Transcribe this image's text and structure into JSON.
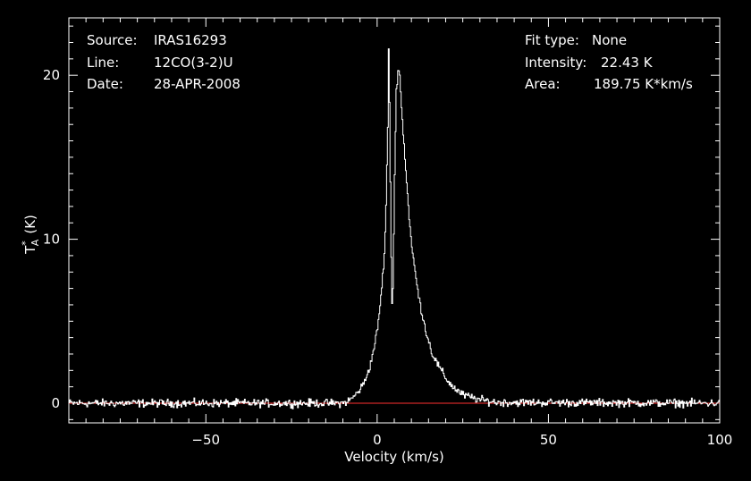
{
  "header_left": {
    "source_label": "Source:",
    "source_value": "IRAS16293",
    "line_label": "Line:",
    "line_value": "12CO(3-2)U",
    "date_label": "Date:",
    "date_value": "28-APR-2008"
  },
  "header_right": {
    "fit_label": "Fit type:",
    "fit_value": "None",
    "intensity_label": "Intensity:",
    "intensity_value": "22.43 K",
    "area_label": "Area:",
    "area_value": "189.75 K*km/s"
  },
  "colors": {
    "background": "#000000",
    "axis": "#ffffff",
    "spectrum": "#ffffff",
    "baseline": "#ff3030"
  },
  "chart_data": {
    "type": "line",
    "xlabel": "Velocity (km/s)",
    "ylabel_main": "T",
    "ylabel_sup": "*",
    "ylabel_sub": "A",
    "ylabel_unit": "(K)",
    "xlim": [
      -90,
      100
    ],
    "ylim": [
      -1.2,
      23.5
    ],
    "xticks": [
      -50,
      0,
      50,
      100
    ],
    "yticks": [
      0,
      10,
      20
    ],
    "xtick_labels": [
      "−50",
      "0",
      "50",
      "100"
    ],
    "ytick_labels": [
      "0",
      "10",
      "20"
    ],
    "baseline_y": 0,
    "noise_rms": 0.15,
    "series": [
      {
        "values_described": "spectrum",
        "x": [
          -90,
          -10,
          -8,
          -6,
          -4,
          -2,
          0,
          1,
          2,
          2.5,
          3,
          3.3,
          3.6,
          4.0,
          4.3,
          4.6,
          5.0,
          5.5,
          6.0,
          6.5,
          7.0,
          8.0,
          9.0,
          10.0,
          12.0,
          14.0,
          16.0,
          18.0,
          20.0,
          22.0,
          25.0,
          30.0,
          35.0,
          100
        ],
        "y": [
          0,
          0,
          0.2,
          0.6,
          1.2,
          2.4,
          4.5,
          6.5,
          9.0,
          12.0,
          17.0,
          22.43,
          16.0,
          9.0,
          5.5,
          8.0,
          14.0,
          19.0,
          20.5,
          20.0,
          18.0,
          15.0,
          12.0,
          9.5,
          6.5,
          4.5,
          3.0,
          2.2,
          1.5,
          1.0,
          0.5,
          0.2,
          0.05,
          0
        ]
      }
    ]
  }
}
